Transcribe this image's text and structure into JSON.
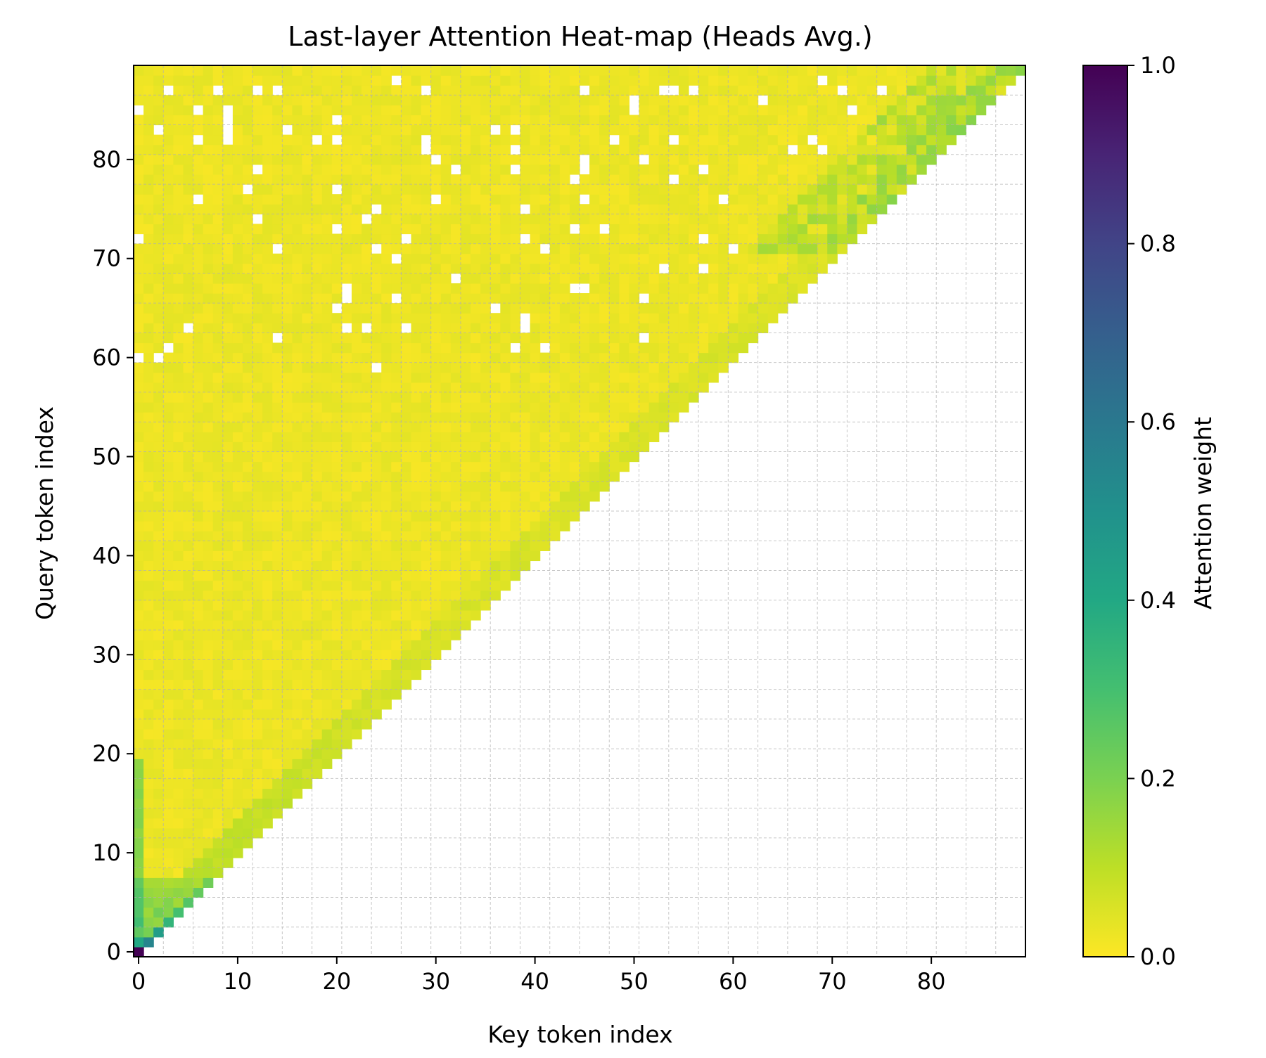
{
  "chart_data": {
    "type": "heatmap",
    "title": "Last-layer Attention Heat-map (Heads Avg.)",
    "xlabel": "Key token index",
    "ylabel": "Query token index",
    "colorbar_label": "Attention weight",
    "colormap": "viridis_r",
    "n_tokens": 90,
    "mask": "causal (keys > query left blank)",
    "xlim": [
      -0.5,
      89.5
    ],
    "ylim": [
      -0.5,
      89.5
    ],
    "x_ticks": [
      "0",
      "10",
      "20",
      "30",
      "40",
      "50",
      "60",
      "70",
      "80"
    ],
    "y_ticks": [
      "0",
      "10",
      "20",
      "30",
      "40",
      "50",
      "60",
      "70",
      "80"
    ],
    "colorbar_range": [
      0.0,
      1.0
    ],
    "colorbar_ticks": [
      "0.0",
      "0.2",
      "0.4",
      "0.6",
      "0.8",
      "1.0"
    ],
    "grid": true,
    "notes_values": {
      "diagonal_peak": 1.0,
      "early_rows_diag": [
        1.0,
        0.55,
        0.45,
        0.35,
        0.3,
        0.27,
        0.24,
        0.22
      ],
      "typical_off_diagonal": 0.01,
      "top_right_band_max": 0.3
    }
  },
  "colors": {
    "grid": "#b0b0b0",
    "axis": "#000000",
    "background": "#ffffff"
  }
}
